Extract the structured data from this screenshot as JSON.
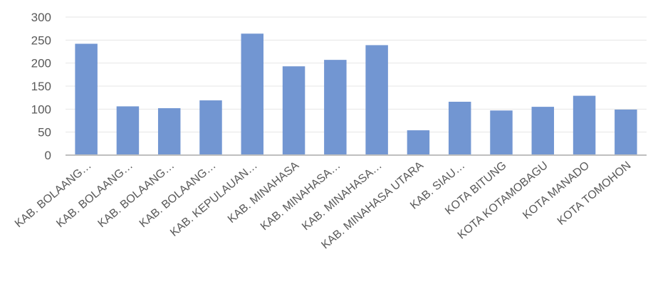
{
  "chart_data": {
    "type": "bar",
    "title": "",
    "xlabel": "",
    "ylabel": "",
    "ylim": [
      0,
      300
    ],
    "yticks": [
      0,
      50,
      100,
      150,
      200,
      250,
      300
    ],
    "grid": true,
    "legend": "none",
    "bar_color": "#7296d2",
    "categories": [
      "KAB. BOLAANG…",
      "KAB. BOLAANG…",
      "KAB. BOLAANG…",
      "KAB. BOLAANG…",
      "KAB. KEPULAUAN…",
      "KAB. MINAHASA",
      "KAB. MINAHASA…",
      "KAB. MINAHASA…",
      "KAB. MINAHASA UTARA",
      "KAB. SIAU…",
      "KOTA BITUNG",
      "KOTA KOTAMOBAGU",
      "KOTA MANADO",
      "KOTA TOMOHON"
    ],
    "values": [
      242,
      106,
      102,
      119,
      264,
      193,
      207,
      239,
      54,
      116,
      97,
      105,
      129,
      99
    ]
  }
}
